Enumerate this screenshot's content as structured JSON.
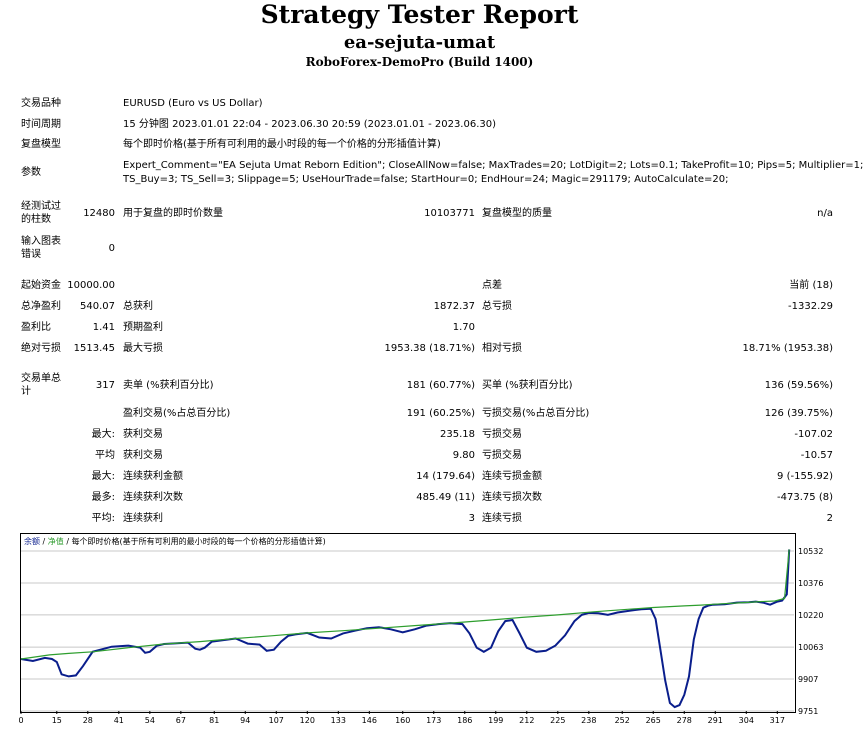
{
  "header": {
    "title": "Strategy Tester Report",
    "subtitle": "ea-sejuta-umat",
    "build": "RoboForex-DemoPro (Build 1400)"
  },
  "info": {
    "symbol_label": "交易品种",
    "symbol_value": "EURUSD (Euro vs US Dollar)",
    "period_label": "时间周期",
    "period_value": "15 分钟图 2023.01.01 22:04 - 2023.06.30 20:59 (2023.01.01 - 2023.06.30)",
    "model_label": "复盘模型",
    "model_value": "每个即时价格(基于所有可利用的最小时段的每一个价格的分形插值计算)",
    "params_label": "参数",
    "params_line1": "Expert_Comment=\"EA Sejuta Umat Reborn Edition\"; CloseAllNow=false; MaxTrades=20; LotDigit=2; Lots=0.1; TakeProfit=10; Pips=5; Multiplier=1;",
    "params_line2": "TS_Buy=3; TS_Sell=3; Slippage=5; UseHourTrade=false; StartHour=0; EndHour=24; Magic=291179; AutoCalculate=20;"
  },
  "bars": {
    "label_line1": "经测试过",
    "label_line2": "的柱数",
    "value": "12480",
    "ticks_label": "用于复盘的即时价数量",
    "ticks_value": "10103771",
    "quality_label": "复盘模型的质量",
    "quality_value": "n/a",
    "errors_line1": "输入图表",
    "errors_line2": "错误",
    "errors_value": "0"
  },
  "summary": {
    "deposit_label": "起始资金",
    "deposit_value": "10000.00",
    "spread_label": "点差",
    "spread_value": "当前 (18)",
    "net_label": "总净盈利",
    "net_value": "540.07",
    "gross_profit_label": "总获利",
    "gross_profit_value": "1872.37",
    "gross_loss_label": "总亏损",
    "gross_loss_value": "-1332.29",
    "pf_label": "盈利比",
    "pf_value": "1.41",
    "payoff_label": "预期盈利",
    "payoff_value": "1.70",
    "abs_dd_label": "绝对亏损",
    "abs_dd_value": "1513.45",
    "max_dd_label": "最大亏损",
    "max_dd_value": "1953.38 (18.71%)",
    "rel_dd_label": "相对亏损",
    "rel_dd_value": "18.71% (1953.38)"
  },
  "trades": {
    "total_line1": "交易单总",
    "total_line2": "计",
    "total_value": "317",
    "short_label": "卖单 (%获利百分比)",
    "short_value": "181 (60.77%)",
    "long_label": "买单 (%获利百分比)",
    "long_value": "136 (59.56%)",
    "win_label": "盈利交易(%占总百分比)",
    "win_value": "191 (60.25%)",
    "loss_label": "亏损交易(%占总百分比)",
    "loss_value": "126 (39.75%)",
    "largest_prefix": "最大:",
    "largest_win_label": "获利交易",
    "largest_win_value": "235.18",
    "largest_loss_label": "亏损交易",
    "largest_loss_value": "-107.02",
    "avg_prefix": "平均",
    "avg_win_label": "获利交易",
    "avg_win_value": "9.80",
    "avg_loss_label": "亏损交易",
    "avg_loss_value": "-10.57",
    "max_cons_prefix": "最大:",
    "max_cons_win_label": "连续获利金额",
    "max_cons_win_value": "14 (179.64)",
    "max_cons_loss_label": "连续亏损金额",
    "max_cons_loss_value": "9 (-155.92)",
    "most_prefix": "最多:",
    "most_cons_win_label": "连续获利次数",
    "most_cons_win_value": "485.49 (11)",
    "most_cons_loss_label": "连续亏损次数",
    "most_cons_loss_value": "-473.75 (8)",
    "avg_cons_prefix": "平均:",
    "avg_cons_win_label": "连续获利",
    "avg_cons_win_value": "3",
    "avg_cons_loss_label": "连续亏损",
    "avg_cons_loss_value": "2"
  },
  "chart_data": {
    "type": "line",
    "legend_balance": "余额",
    "legend_sep": " / ",
    "legend_equity": "净值",
    "legend_rest": " / 每个即时价格(基于所有可利用的最小时段的每一个价格的分形插值计算)",
    "xlim": [
      0,
      324
    ],
    "ylim": [
      9751,
      10532
    ],
    "x_ticks": [
      0,
      15,
      28,
      41,
      54,
      67,
      81,
      94,
      107,
      120,
      133,
      146,
      160,
      173,
      186,
      199,
      212,
      225,
      238,
      252,
      265,
      278,
      291,
      304,
      317
    ],
    "y_ticks": [
      10532,
      10376,
      10220,
      10063,
      9907,
      9751
    ],
    "colors": {
      "balance": "#0a1e8c",
      "equity": "#2e9e2e",
      "grid": "#c8c8c8"
    },
    "series": [
      {
        "name": "余额",
        "x": [
          0,
          12,
          20,
          30,
          45,
          60,
          75,
          90,
          105,
          120,
          135,
          150,
          165,
          180,
          195,
          210,
          225,
          240,
          255,
          265,
          278,
          285,
          290,
          300,
          310,
          316,
          320,
          322
        ],
        "y": [
          10005,
          10025,
          10032,
          10040,
          10060,
          10078,
          10090,
          10105,
          10118,
          10132,
          10143,
          10155,
          10168,
          10180,
          10193,
          10208,
          10220,
          10235,
          10248,
          10256,
          10264,
          10268,
          10272,
          10278,
          10285,
          10288,
          10300,
          10540
        ]
      },
      {
        "name": "净值",
        "x": [
          0,
          5,
          10,
          13,
          15,
          17,
          20,
          23,
          26,
          30,
          38,
          45,
          50,
          52,
          54,
          57,
          60,
          70,
          73,
          75,
          77,
          80,
          90,
          95,
          100,
          103,
          106,
          109,
          112,
          115,
          120,
          125,
          130,
          135,
          140,
          145,
          150,
          155,
          160,
          165,
          170,
          175,
          180,
          185,
          188,
          191,
          194,
          197,
          200,
          203,
          206,
          209,
          212,
          216,
          220,
          224,
          228,
          232,
          235,
          238,
          242,
          246,
          250,
          255,
          260,
          264,
          266,
          268,
          270,
          272,
          274,
          276,
          278,
          280,
          282,
          284,
          286,
          288,
          290,
          295,
          300,
          305,
          308,
          311,
          314,
          317,
          319,
          321,
          322
        ],
        "y": [
          10005,
          9995,
          10010,
          10005,
          9990,
          9930,
          9920,
          9925,
          9970,
          10040,
          10065,
          10070,
          10060,
          10035,
          10040,
          10070,
          10078,
          10085,
          10055,
          10050,
          10060,
          10090,
          10105,
          10080,
          10075,
          10045,
          10050,
          10090,
          10118,
          10125,
          10132,
          10110,
          10105,
          10130,
          10143,
          10155,
          10160,
          10150,
          10135,
          10150,
          10168,
          10175,
          10180,
          10175,
          10130,
          10060,
          10040,
          10060,
          10140,
          10190,
          10195,
          10130,
          10060,
          10040,
          10045,
          10070,
          10120,
          10190,
          10220,
          10230,
          10228,
          10220,
          10232,
          10240,
          10248,
          10250,
          10200,
          10050,
          9900,
          9790,
          9770,
          9780,
          9830,
          9920,
          10100,
          10200,
          10255,
          10265,
          10270,
          10272,
          10280,
          10282,
          10285,
          10280,
          10270,
          10285,
          10290,
          10320,
          10540
        ]
      }
    ]
  }
}
